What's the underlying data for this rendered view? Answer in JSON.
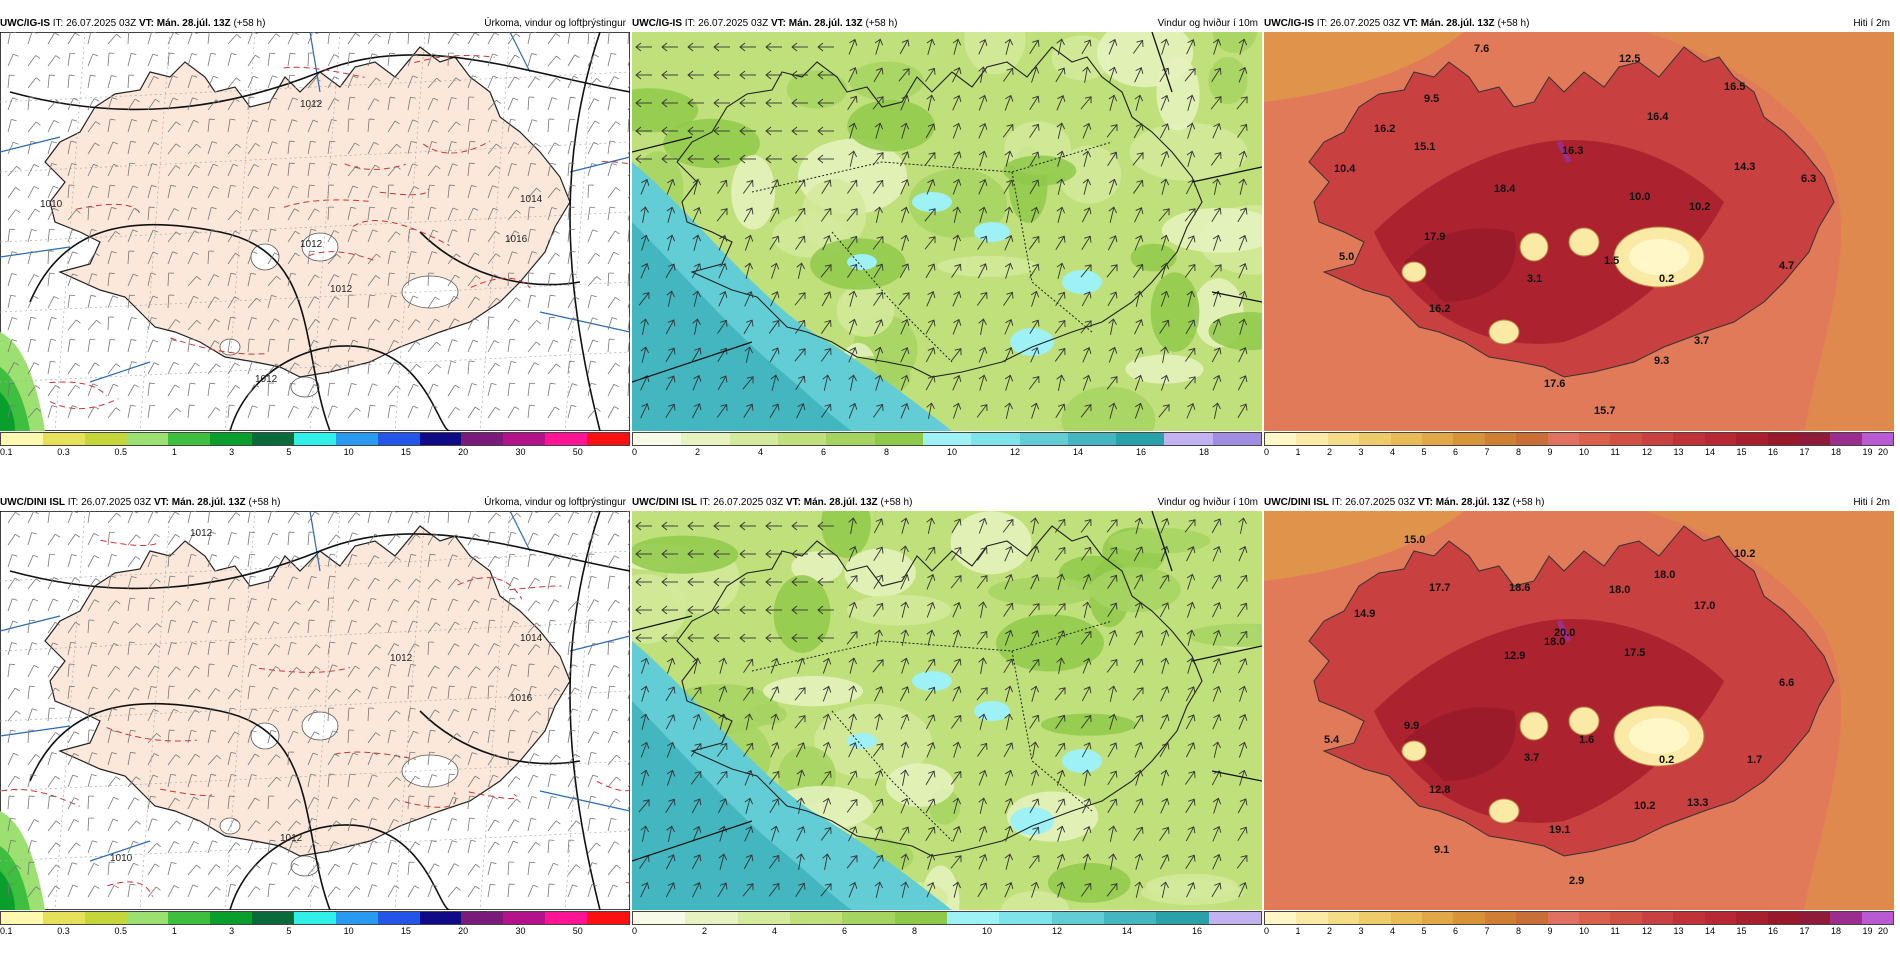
{
  "common": {
    "it_label": "IT:",
    "it": "26.07.2025 03Z",
    "vt_label": "VT:",
    "vt": "Mán. 28.júl. 13Z",
    "lead": "(+58 h)"
  },
  "panels": [
    {
      "id": "p1",
      "model": "UWC/IG-IS",
      "title": "Úrkoma, vindur og loftþrýstingur",
      "type": "precip",
      "colors": [
        "#fff9b0",
        "#e6e05a",
        "#c4d63a",
        "#9be070",
        "#3fbf3f",
        "#0a9e2c",
        "#0a6a3c",
        "#30f0e8",
        "#2a9af0",
        "#2555e8",
        "#100a86",
        "#7a1a7a",
        "#b3128a",
        "#ff1494",
        "#ff1010"
      ],
      "ticks": [
        "0.1",
        "0.3",
        "0.5",
        "1",
        "3",
        "5",
        "10",
        "15",
        "20",
        "30",
        "50"
      ],
      "isobar_labels": [
        "1012",
        "1012",
        "1014",
        "1016",
        "1012",
        "1012",
        "1010"
      ],
      "values": []
    },
    {
      "id": "p2",
      "model": "UWC/IG-IS",
      "title": "Vindur og hviður í 10m",
      "type": "wind",
      "colors": [
        "#f7fae6",
        "#e6f2c0",
        "#d4ea9c",
        "#bfe07a",
        "#a6d461",
        "#8fc94a",
        "#9ef1f5",
        "#7fe3ea",
        "#62cdd4",
        "#43b6bf",
        "#2aa0a8",
        "#c3b2f0",
        "#a08ce0"
      ],
      "ticks": [
        "0",
        "2",
        "4",
        "6",
        "8",
        "10",
        "12",
        "14",
        "16",
        "18"
      ],
      "values": []
    },
    {
      "id": "p3",
      "model": "UWC/IG-IS",
      "title": "Hiti í 2m",
      "type": "temp",
      "colors": [
        "#fff7c8",
        "#fbeaa6",
        "#f5dc86",
        "#efcc6a",
        "#e8bb56",
        "#e0a846",
        "#d89238",
        "#cf7e34",
        "#c86e36",
        "#e07060",
        "#d8604c",
        "#d05044",
        "#c84040",
        "#c03238",
        "#b82834",
        "#a8202e",
        "#981a2a",
        "#901a3a",
        "#9a2e8e",
        "#b85ad2"
      ],
      "ticks": [
        "0",
        "1",
        "2",
        "3",
        "4",
        "5",
        "6",
        "7",
        "8",
        "9",
        "10",
        "11",
        "12",
        "13",
        "14",
        "15",
        "16",
        "17",
        "18",
        "19",
        "20"
      ],
      "values": [
        "7.6",
        "12.5",
        "9.5",
        "16.5",
        "16.2",
        "15.1",
        "16.4",
        "10.4",
        "16.3",
        "14.3",
        "6.3",
        "18.4",
        "10.0",
        "10.2",
        "17.9",
        "5.0",
        "1.5",
        "3.1",
        "0.2",
        "4.7",
        "16.2",
        "3.7",
        "9.3",
        "17.6",
        "15.7"
      ]
    },
    {
      "id": "p4",
      "model": "UWC/DINI ISL",
      "title": "Úrkoma, vindur og loftþrýstingur",
      "type": "precip",
      "colors": [
        "#fff9b0",
        "#e6e05a",
        "#c4d63a",
        "#9be070",
        "#3fbf3f",
        "#0a9e2c",
        "#0a6a3c",
        "#30f0e8",
        "#2a9af0",
        "#2555e8",
        "#100a86",
        "#7a1a7a",
        "#b3128a",
        "#ff1494",
        "#ff1010"
      ],
      "ticks": [
        "0.1",
        "0.3",
        "0.5",
        "1",
        "3",
        "5",
        "10",
        "15",
        "20",
        "30",
        "50"
      ],
      "isobar_labels": [
        "1012",
        "1012",
        "1014",
        "1016",
        "1010",
        "1012"
      ],
      "values": []
    },
    {
      "id": "p5",
      "model": "UWC/DINI ISL",
      "title": "Vindur og hviður í 10m",
      "type": "wind",
      "colors": [
        "#f7fae6",
        "#e6f2c0",
        "#d4ea9c",
        "#bfe07a",
        "#a6d461",
        "#8fc94a",
        "#9ef1f5",
        "#7fe3ea",
        "#62cdd4",
        "#43b6bf",
        "#2aa0a8",
        "#c3b2f0"
      ],
      "ticks": [
        "0",
        "2",
        "4",
        "6",
        "8",
        "10",
        "12",
        "14",
        "16"
      ],
      "values": []
    },
    {
      "id": "p6",
      "model": "UWC/DINI ISL",
      "title": "Hiti í 2m",
      "type": "temp",
      "colors": [
        "#fff7c8",
        "#fbeaa6",
        "#f5dc86",
        "#efcc6a",
        "#e8bb56",
        "#e0a846",
        "#d89238",
        "#cf7e34",
        "#c86e36",
        "#e07060",
        "#d8604c",
        "#d05044",
        "#c84040",
        "#c03238",
        "#b82834",
        "#a8202e",
        "#981a2a",
        "#901a3a",
        "#9a2e8e",
        "#b85ad2"
      ],
      "ticks": [
        "0",
        "1",
        "2",
        "3",
        "4",
        "5",
        "6",
        "7",
        "8",
        "9",
        "10",
        "11",
        "12",
        "13",
        "14",
        "15",
        "16",
        "17",
        "18",
        "19",
        "20"
      ],
      "values": [
        "15.0",
        "10.2",
        "17.7",
        "18.6",
        "18.0",
        "18.0",
        "14.9",
        "17.0",
        "18.0",
        "20.0",
        "12.9",
        "17.5",
        "6.6",
        "5.4",
        "9.9",
        "1.6",
        "3.7",
        "0.2",
        "1.7",
        "12.8",
        "10.2",
        "13.3",
        "19.1",
        "9.1",
        "2.9"
      ]
    }
  ]
}
